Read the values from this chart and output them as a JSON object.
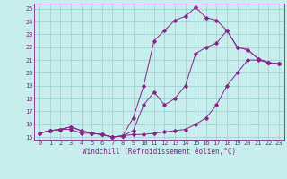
{
  "xlabel": "Windchill (Refroidissement éolien,°C)",
  "xlim": [
    -0.5,
    23.5
  ],
  "ylim": [
    14.8,
    25.4
  ],
  "xticks": [
    0,
    1,
    2,
    3,
    4,
    5,
    6,
    7,
    8,
    9,
    10,
    11,
    12,
    13,
    14,
    15,
    16,
    17,
    18,
    19,
    20,
    21,
    22,
    23
  ],
  "yticks": [
    15,
    16,
    17,
    18,
    19,
    20,
    21,
    22,
    23,
    24,
    25
  ],
  "bg_color": "#c8eded",
  "line_color": "#882288",
  "grid_color": "#99cccc",
  "line1_x": [
    0,
    1,
    2,
    3,
    4,
    5,
    6,
    7,
    8,
    9,
    10,
    11,
    12,
    13,
    14,
    15,
    16,
    17,
    18,
    19,
    20,
    21,
    22,
    23
  ],
  "line1_y": [
    15.3,
    15.5,
    15.6,
    15.6,
    15.3,
    15.3,
    15.2,
    15.0,
    15.1,
    15.2,
    15.2,
    15.3,
    15.4,
    15.5,
    15.6,
    16.0,
    16.5,
    17.5,
    19.0,
    20.0,
    21.0,
    21.0,
    20.8,
    20.7
  ],
  "line2_x": [
    0,
    1,
    2,
    3,
    4,
    5,
    6,
    7,
    8,
    9,
    10,
    11,
    12,
    13,
    14,
    15,
    16,
    17,
    18,
    19,
    20,
    21,
    22,
    23
  ],
  "line2_y": [
    15.3,
    15.5,
    15.6,
    15.8,
    15.5,
    15.3,
    15.2,
    15.0,
    15.1,
    16.5,
    19.0,
    22.5,
    23.3,
    24.1,
    24.4,
    25.1,
    24.3,
    24.1,
    23.3,
    22.0,
    21.8,
    21.1,
    20.8,
    20.7
  ],
  "line3_x": [
    0,
    1,
    2,
    3,
    4,
    5,
    6,
    7,
    8,
    9,
    10,
    11,
    12,
    13,
    14,
    15,
    16,
    17,
    18,
    19,
    20,
    21,
    22,
    23
  ],
  "line3_y": [
    15.3,
    15.5,
    15.6,
    15.8,
    15.5,
    15.3,
    15.2,
    15.0,
    15.1,
    15.5,
    17.5,
    18.5,
    17.5,
    18.0,
    19.0,
    21.5,
    22.0,
    22.3,
    23.3,
    22.0,
    21.8,
    21.1,
    20.8,
    20.7
  ],
  "tick_fontsize": 5.0,
  "label_fontsize": 5.5
}
